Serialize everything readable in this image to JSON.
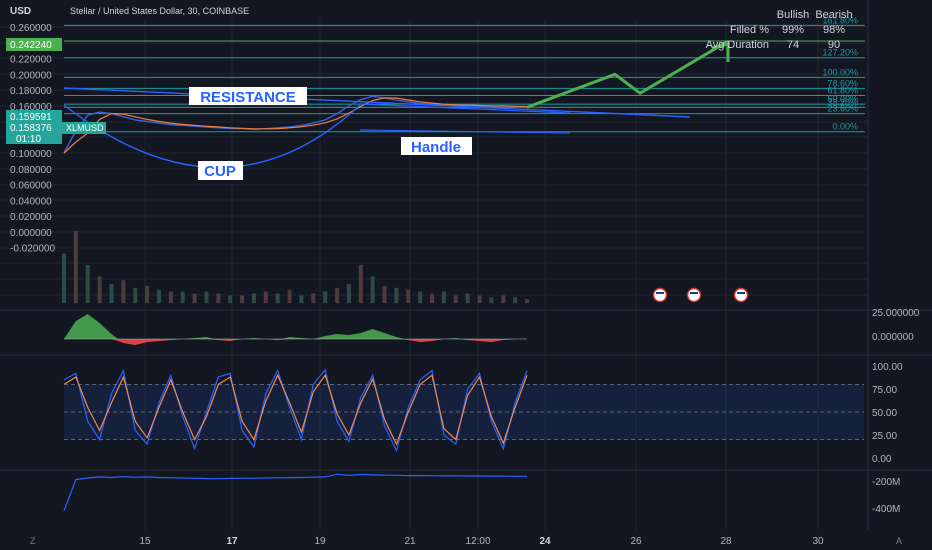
{
  "header": {
    "currency": "USD",
    "title": "Stellar / United States Dollar, 30, COINBASE"
  },
  "stats_table": {
    "col_bullish": "Bullish",
    "col_bearish": "Bearish",
    "rows": [
      {
        "label": "Filled %",
        "bullish": "99%",
        "bearish": "98%"
      },
      {
        "label": "Avg Duration",
        "bullish": "74",
        "bearish": "90"
      }
    ]
  },
  "price_tags": {
    "target": "0.242240",
    "upper": "0.159591",
    "current": "0.158376",
    "countdown": "01:10",
    "symbol": "XLMUSD"
  },
  "annotations": {
    "resistance": "RESISTANCE",
    "cup": "CUP",
    "handle": "Handle"
  },
  "fib_levels": [
    "161.80%",
    "127.20%",
    "100.00%",
    "78.60%",
    "61.80%",
    "50.00%",
    "38.20%",
    "23.60%",
    "0.00%"
  ],
  "colors": {
    "background": "#131722",
    "grid": "#1f2430",
    "accent_green": "#4caf50",
    "fib_teal": "#1e9aa0",
    "trend_blue": "#2962ff",
    "price_blue": "#3a62d8",
    "price_orange": "#ef7f41",
    "osc_green": "#4caf50",
    "osc_red": "#f23645",
    "stoch_k": "#2962ff",
    "stoch_d": "#f18b50"
  },
  "chart_data": [
    {
      "type": "line",
      "name": "price",
      "yaxis_ticks": [
        "0.260000",
        "0.240000",
        "0.220000",
        "0.200000",
        "0.180000",
        "0.160000",
        "0.140000",
        "0.120000",
        "0.100000",
        "0.080000",
        "0.060000",
        "0.040000",
        "0.020000",
        "0.000000",
        "-0.020000"
      ],
      "ylim": [
        -0.02,
        0.27
      ],
      "x_ticks": [
        "15",
        "17",
        "19",
        "21",
        "12:00",
        "24",
        "26",
        "28",
        "30"
      ],
      "x_ticks_bold": [
        "17",
        "24"
      ],
      "values": [
        0.1,
        0.128,
        0.148,
        0.152,
        0.15,
        0.146,
        0.142,
        0.14,
        0.138,
        0.136,
        0.135,
        0.134,
        0.133,
        0.132,
        0.131,
        0.131,
        0.13,
        0.131,
        0.132,
        0.133,
        0.135,
        0.138,
        0.142,
        0.15,
        0.16,
        0.168,
        0.172,
        0.17,
        0.167,
        0.165,
        0.163,
        0.162,
        0.161,
        0.16,
        0.161,
        0.16,
        0.159,
        0.16,
        0.159,
        0.158
      ],
      "fib_prices": [
        0.262,
        0.221,
        0.196,
        0.182,
        0.173,
        0.162,
        0.158,
        0.15,
        0.127
      ],
      "projection": [
        0.158,
        0.2,
        0.176,
        0.242
      ]
    },
    {
      "type": "bar",
      "name": "volume",
      "values": [
        26,
        38,
        20,
        14,
        10,
        12,
        8,
        9,
        7,
        6,
        6,
        5,
        6,
        5,
        4,
        4,
        5,
        6,
        5,
        7,
        4,
        5,
        6,
        8,
        10,
        20,
        14,
        9,
        8,
        7,
        6,
        5,
        6,
        4,
        5,
        4,
        3,
        4,
        3,
        2
      ]
    },
    {
      "type": "area",
      "name": "momentum",
      "yaxis_ticks": [
        "25.000000",
        "0.000000"
      ],
      "values": [
        0,
        18,
        25,
        16,
        5,
        -4,
        -6,
        -3,
        -2,
        -1,
        0,
        1,
        2,
        -1,
        -2,
        0,
        1,
        0,
        -1,
        2,
        1,
        0,
        3,
        5,
        4,
        6,
        10,
        6,
        2,
        -1,
        -3,
        -2,
        0,
        1,
        -1,
        -2,
        -3,
        -1,
        0,
        0
      ]
    },
    {
      "type": "line",
      "name": "stochastic",
      "yaxis_ticks": [
        "100.00",
        "75.00",
        "50.00",
        "25.00",
        "0.00"
      ],
      "ylim": [
        0,
        100
      ],
      "bands": [
        80,
        20
      ],
      "k": [
        85,
        92,
        40,
        20,
        70,
        95,
        30,
        15,
        60,
        90,
        45,
        10,
        50,
        88,
        92,
        30,
        12,
        70,
        95,
        55,
        20,
        80,
        96,
        40,
        18,
        66,
        90,
        35,
        8,
        55,
        85,
        95,
        25,
        15,
        75,
        92,
        40,
        10,
        60,
        95
      ],
      "d": [
        80,
        88,
        55,
        30,
        60,
        88,
        40,
        22,
        55,
        85,
        50,
        20,
        45,
        80,
        88,
        40,
        20,
        62,
        90,
        60,
        28,
        72,
        90,
        48,
        25,
        60,
        86,
        42,
        15,
        50,
        80,
        90,
        32,
        20,
        68,
        88,
        45,
        16,
        55,
        90
      ]
    },
    {
      "type": "line",
      "name": "cumulative",
      "yaxis_ticks": [
        "-200M",
        "-400M"
      ],
      "ylim": [
        -460,
        -140
      ],
      "values": [
        -420,
        -190,
        -178,
        -170,
        -174,
        -168,
        -172,
        -170,
        -174,
        -176,
        -178,
        -180,
        -182,
        -183,
        -181,
        -180,
        -179,
        -178,
        -176,
        -175,
        -174,
        -172,
        -170,
        -150,
        -158,
        -152,
        -155,
        -157,
        -158,
        -160,
        -160,
        -161,
        -162,
        -162,
        -163,
        -163,
        -164,
        -164,
        -165,
        -165
      ]
    }
  ]
}
